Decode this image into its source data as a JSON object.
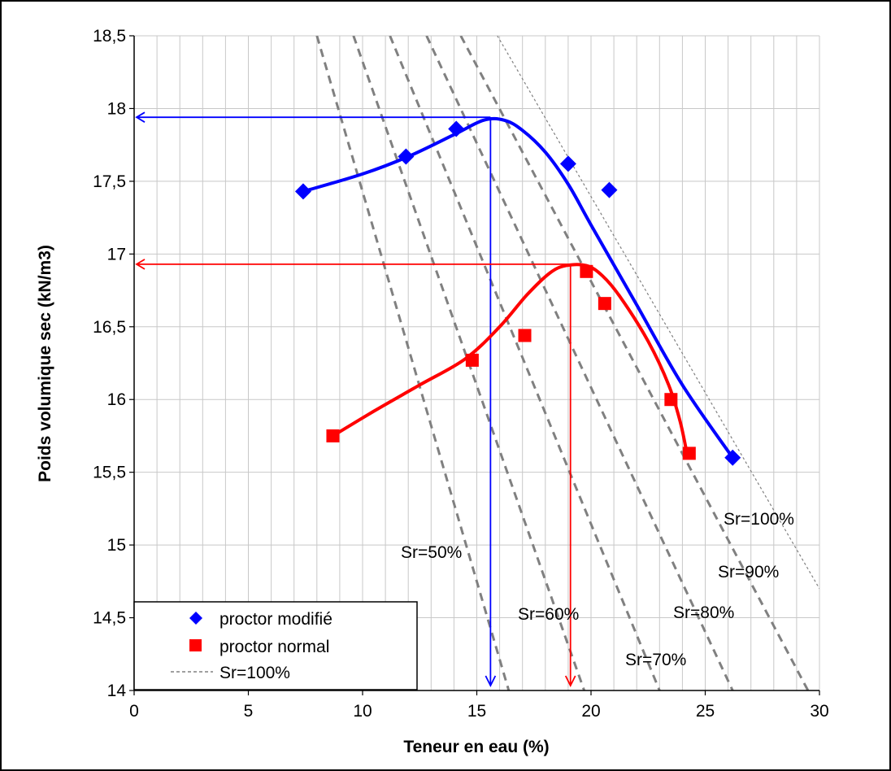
{
  "chart_data": {
    "type": "scatter",
    "xlabel": "Teneur en eau (%)",
    "ylabel": "Poids volumique sec (kN/m3)",
    "xlim": [
      0,
      30
    ],
    "ylim": [
      14,
      18.5
    ],
    "x_ticks": [
      "0",
      "5",
      "10",
      "15",
      "20",
      "25",
      "30"
    ],
    "y_ticks": [
      "14",
      "14,5",
      "15",
      "15,5",
      "16",
      "16,5",
      "17",
      "17,5",
      "18",
      "18,5"
    ],
    "grid": true,
    "legend_position": "bottom-left",
    "series": [
      {
        "name": "proctor modifié",
        "marker": "diamond",
        "color": "#0000ff",
        "points": [
          [
            7.4,
            17.43
          ],
          [
            11.9,
            17.67
          ],
          [
            14.1,
            17.86
          ],
          [
            19.0,
            17.62
          ],
          [
            20.8,
            17.44
          ],
          [
            26.2,
            15.6
          ]
        ],
        "fit_curve": [
          [
            7.4,
            17.43
          ],
          [
            10.0,
            17.55
          ],
          [
            12.0,
            17.67
          ],
          [
            14.0,
            17.82
          ],
          [
            15.3,
            17.92
          ],
          [
            16.2,
            17.92
          ],
          [
            17.0,
            17.85
          ],
          [
            18.0,
            17.7
          ],
          [
            19.0,
            17.48
          ],
          [
            20.0,
            17.2
          ],
          [
            22.0,
            16.65
          ],
          [
            24.0,
            16.1
          ],
          [
            26.2,
            15.6
          ]
        ]
      },
      {
        "name": "proctor normal",
        "marker": "square",
        "color": "#ff0000",
        "points": [
          [
            8.7,
            15.75
          ],
          [
            14.8,
            16.27
          ],
          [
            17.1,
            16.44
          ],
          [
            19.8,
            16.88
          ],
          [
            20.6,
            16.66
          ],
          [
            23.5,
            16.0
          ],
          [
            24.3,
            15.63
          ]
        ],
        "fit_curve": [
          [
            8.7,
            15.75
          ],
          [
            10.5,
            15.92
          ],
          [
            12.5,
            16.1
          ],
          [
            14.5,
            16.28
          ],
          [
            16.0,
            16.5
          ],
          [
            17.2,
            16.72
          ],
          [
            18.2,
            16.87
          ],
          [
            18.9,
            16.92
          ],
          [
            19.8,
            16.92
          ],
          [
            20.5,
            16.85
          ],
          [
            21.3,
            16.7
          ],
          [
            22.5,
            16.4
          ],
          [
            23.4,
            16.1
          ],
          [
            23.9,
            15.85
          ],
          [
            24.2,
            15.63
          ]
        ]
      }
    ],
    "saturation_curves": [
      {
        "label": "Sr=50%",
        "points": [
          [
            8.0,
            18.5
          ],
          [
            16.4,
            14.0
          ]
        ]
      },
      {
        "label": "Sr=60%",
        "points": [
          [
            9.6,
            18.5
          ],
          [
            19.7,
            14.0
          ]
        ]
      },
      {
        "label": "Sr=70%",
        "points": [
          [
            11.2,
            18.5
          ],
          [
            23.0,
            14.0
          ]
        ]
      },
      {
        "label": "Sr=80%",
        "points": [
          [
            12.8,
            18.5
          ],
          [
            26.2,
            14.0
          ]
        ]
      },
      {
        "label": "Sr=90%",
        "points": [
          [
            14.3,
            18.5
          ],
          [
            29.5,
            14.0
          ]
        ]
      },
      {
        "label": "Sr=100%",
        "points": [
          [
            15.9,
            18.5
          ],
          [
            30.0,
            14.7
          ]
        ]
      }
    ],
    "sr_labels": [
      "Sr=50%",
      "Sr=60%",
      "Sr=70%",
      "Sr=80%",
      "Sr=90%",
      "Sr=100%"
    ],
    "optimum_lines": [
      {
        "name": "proctor modifié optimum",
        "color": "#0000ff",
        "x": 15.6,
        "y": 17.94
      },
      {
        "name": "proctor normal optimum",
        "color": "#ff0000",
        "x": 19.1,
        "y": 16.93
      }
    ],
    "legend": [
      {
        "label": "proctor modifié",
        "marker": "diamond",
        "color": "#0000ff"
      },
      {
        "label": "proctor normal",
        "marker": "square",
        "color": "#ff0000"
      },
      {
        "label": "Sr=100%",
        "marker": "dashed-line",
        "color": "#808080"
      }
    ]
  }
}
